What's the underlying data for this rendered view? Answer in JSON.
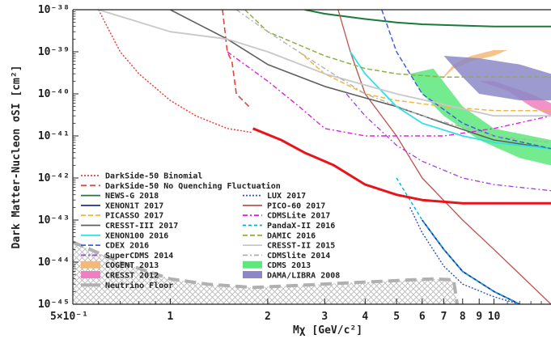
{
  "chart_data": {
    "type": "line",
    "title": "",
    "xlabel": "Mχ [GeV/c²]",
    "ylabel": "Dark Matter-Nucleon σSI [cm²]",
    "x_scale": "log",
    "y_scale": "log",
    "xlim": [
      0.5,
      15
    ],
    "ylim": [
      1e-45,
      1e-38
    ],
    "x_ticks": [
      {
        "value": 0.5,
        "label": "5×10⁻¹"
      },
      {
        "value": 1,
        "label": "1"
      },
      {
        "value": 2,
        "label": "2"
      },
      {
        "value": 3,
        "label": "3"
      },
      {
        "value": 4,
        "label": "4"
      },
      {
        "value": 5,
        "label": "5"
      },
      {
        "value": 6,
        "label": "6"
      },
      {
        "value": 7,
        "label": "7"
      },
      {
        "value": 8,
        "label": "8"
      },
      {
        "value": 9,
        "label": "9"
      },
      {
        "value": 10,
        "label": "10"
      }
    ],
    "y_ticks": [
      {
        "value": 1e-45,
        "label": "10⁻⁴⁵"
      },
      {
        "value": 1e-44,
        "label": "10⁻⁴⁴"
      },
      {
        "value": 1e-43,
        "label": "10⁻⁴³"
      },
      {
        "value": 1e-42,
        "label": "10⁻⁴²"
      },
      {
        "value": 1e-41,
        "label": "10⁻⁴¹"
      },
      {
        "value": 1e-40,
        "label": "10⁻⁴⁰"
      },
      {
        "value": 1e-39,
        "label": "10⁻³⁹"
      },
      {
        "value": 1e-38,
        "label": "10⁻³⁸"
      }
    ],
    "legend_position": "bottom-left",
    "series": [
      {
        "name": "DarkSide-50 Binomial",
        "color": "#e8413c",
        "dash": "2,2",
        "width": 1.5,
        "x": [
          0.6,
          0.7,
          0.8,
          1.0,
          1.2,
          1.5,
          1.8
        ],
        "y": [
          1e-38,
          1e-39,
          3e-40,
          7e-41,
          3e-41,
          1.5e-41,
          1.2e-41
        ]
      },
      {
        "name": "DarkSide-50 No Quenching Fluctuation",
        "color": "#e8413c",
        "dash": "7,4",
        "width": 1.6,
        "x": [
          1.45,
          1.5,
          1.52,
          1.55,
          1.6,
          1.75
        ],
        "y": [
          1e-38,
          1e-39,
          8e-40,
          6e-40,
          1e-40,
          5e-41
        ]
      },
      {
        "name": "NEWS-G 2018",
        "color": "#1a7a3a",
        "dash": "",
        "width": 2,
        "x": [
          2.6,
          3,
          4,
          5,
          6,
          8,
          10,
          15
        ],
        "y": [
          1e-38,
          8e-39,
          6e-39,
          5e-39,
          4.5e-39,
          4.2e-39,
          4e-39,
          4e-39
        ]
      },
      {
        "name": "LUX 2017",
        "color": "#2b4fbf",
        "dash": "2,2",
        "width": 1.4,
        "x": [
          5.5,
          6,
          7,
          8,
          10,
          12
        ],
        "y": [
          2e-43,
          5e-44,
          8e-45,
          3e-45,
          1.5e-45,
          1e-45
        ]
      },
      {
        "name": "XENON1T 2017",
        "color": "#1f2f9f",
        "dash": "",
        "width": 1.8,
        "x": [
          6,
          7,
          8,
          10,
          12
        ],
        "y": [
          1e-43,
          2e-44,
          6e-45,
          2e-45,
          1e-45
        ]
      },
      {
        "name": "PICO-60 2017",
        "color": "#c0504d",
        "dash": "",
        "width": 1.3,
        "x": [
          3.3,
          3.6,
          4,
          5,
          6,
          8,
          10,
          15
        ],
        "y": [
          1e-38,
          1e-39,
          1e-40,
          1e-41,
          1e-42,
          1e-43,
          2e-44,
          1e-45
        ]
      },
      {
        "name": "PICASSO 2017",
        "color": "#f0b840",
        "dash": "6,3",
        "width": 1.5,
        "x": [
          2.5,
          3,
          4,
          5,
          7,
          10,
          15
        ],
        "y": [
          1e-39,
          3e-40,
          1e-40,
          7e-41,
          5e-41,
          4e-41,
          4e-41
        ]
      },
      {
        "name": "CDMSLite 2017",
        "color": "#e020e0",
        "dash": "6,3,2,3",
        "width": 1.4,
        "x": [
          1.5,
          2,
          2.5,
          3,
          4,
          5,
          7,
          10,
          15
        ],
        "y": [
          1e-39,
          2e-40,
          5e-41,
          1.5e-41,
          1e-41,
          1e-41,
          1e-41,
          1.5e-41,
          3e-41
        ]
      },
      {
        "name": "CRESST-III 2017",
        "color": "#606060",
        "dash": "",
        "width": 1.6,
        "x": [
          1,
          1.5,
          2,
          3,
          4,
          5,
          7,
          10,
          15
        ],
        "y": [
          1e-38,
          2e-39,
          5e-40,
          1.5e-40,
          8e-41,
          5e-41,
          2e-41,
          8e-42,
          5e-42
        ]
      },
      {
        "name": "PandaX-II 2016",
        "color": "#00b0e0",
        "dash": "4,3",
        "width": 1.4,
        "x": [
          5,
          6,
          7,
          8,
          10,
          12
        ],
        "y": [
          1e-42,
          1e-43,
          2e-44,
          6e-45,
          2e-45,
          1e-45
        ]
      },
      {
        "name": "XENON100 2016",
        "color": "#30e0e8",
        "dash": "",
        "width": 1.8,
        "x": [
          3.6,
          4,
          5,
          6,
          8,
          10,
          15
        ],
        "y": [
          1e-39,
          3e-40,
          5e-41,
          2e-41,
          1e-41,
          7e-42,
          5e-42
        ]
      },
      {
        "name": "DAMIC 2016",
        "color": "#90b040",
        "dash": "6,3",
        "width": 1.5,
        "x": [
          1.7,
          2,
          3,
          4,
          5,
          7,
          10,
          15
        ],
        "y": [
          1e-38,
          3e-39,
          8e-40,
          4e-40,
          3e-40,
          2.5e-40,
          2.5e-40,
          2.5e-40
        ]
      },
      {
        "name": "CDEX 2016",
        "color": "#4060e0",
        "dash": "6,3",
        "width": 1.5,
        "x": [
          4.5,
          5,
          6,
          8,
          10,
          15
        ],
        "y": [
          1e-38,
          1e-39,
          1e-40,
          2e-41,
          1e-41,
          5e-42
        ]
      },
      {
        "name": "CRESST-II 2015",
        "color": "#c8c8c8",
        "dash": "",
        "width": 1.8,
        "x": [
          0.6,
          1,
          1.5,
          2,
          3,
          5,
          10,
          15
        ],
        "y": [
          1e-38,
          3e-39,
          2e-39,
          1e-39,
          3e-40,
          1e-40,
          3e-41,
          3e-41
        ]
      },
      {
        "name": "SuperCDMS 2014",
        "color": "#a040e0",
        "dash": "6,3,2,3",
        "width": 1.3,
        "x": [
          3.5,
          4,
          5,
          6,
          8,
          10,
          15
        ],
        "y": [
          1e-40,
          3e-41,
          6e-42,
          2.5e-42,
          1e-42,
          7e-43,
          5e-43
        ]
      },
      {
        "name": "CDMSlite 2014",
        "color": "#b0b0b0",
        "dash": "6,3,2,3",
        "width": 1.3,
        "x": [
          1.6,
          2,
          3,
          4,
          6,
          10,
          15
        ],
        "y": [
          1e-38,
          3e-39,
          4e-40,
          1e-40,
          3e-41,
          1e-41,
          7e-42
        ]
      },
      {
        "name": "DarkSide-50",
        "color": "#e8141c",
        "dash": "",
        "width": 3,
        "x": [
          1.8,
          2.2,
          2.6,
          3.2,
          4,
          5,
          6,
          8,
          10,
          15
        ],
        "y": [
          1.5e-41,
          8e-42,
          4e-42,
          2e-42,
          7e-43,
          4e-43,
          3e-43,
          2.5e-43,
          2.5e-43,
          2.5e-43
        ]
      },
      {
        "name": "Neutrino Floor",
        "color": "#b0b0b0",
        "dash": "14,7",
        "width": 4,
        "x": [
          0.5,
          0.7,
          1,
          1.3,
          1.8,
          2.5,
          3.5,
          4.5,
          5.5,
          6.5,
          7.5,
          7.7
        ],
        "y": [
          3e-44,
          1e-44,
          4e-45,
          3e-45,
          2.5e-45,
          2.8e-45,
          3.2e-45,
          3.5e-45,
          3.8e-45,
          4e-45,
          3.8e-45,
          1e-45
        ]
      }
    ],
    "regions": [
      {
        "name": "COGENT 2013",
        "color": "#f4b878",
        "x": [
          6.8,
          7.5,
          8.5,
          10,
          11,
          10,
          8.5,
          7.5
        ],
        "y": [
          2e-40,
          4e-40,
          6e-40,
          8e-40,
          1.1e-39,
          1.1e-39,
          8e-40,
          5e-40
        ]
      },
      {
        "name": "CRESST 2012",
        "color": "#ef7fc0",
        "x": [
          9,
          11,
          13,
          15,
          15,
          13,
          10
        ],
        "y": [
          2e-40,
          1.2e-40,
          5e-41,
          3e-41,
          6e-41,
          1e-40,
          2e-40
        ]
      },
      {
        "name": "CDMS 2013",
        "color": "#5ce87a",
        "x": [
          5.5,
          6.5,
          8,
          10,
          15,
          15,
          12,
          9,
          7,
          6,
          5.5
        ],
        "y": [
          3e-40,
          4e-40,
          5e-41,
          1.5e-41,
          8e-42,
          2e-42,
          3e-42,
          8e-42,
          3e-41,
          1e-40,
          3e-40
        ]
      },
      {
        "name": "DAMA/LIBRA 2008",
        "color": "#8c88c8",
        "x": [
          7,
          9,
          12,
          15,
          15,
          12,
          9,
          8
        ],
        "y": [
          8e-40,
          7e-40,
          5e-40,
          3e-40,
          7e-41,
          7e-41,
          1e-40,
          2.5e-40
        ]
      }
    ],
    "legend": [
      {
        "label": "DarkSide-50 Binomial",
        "color": "#e8413c",
        "dash": "2,2",
        "kind": "line"
      },
      {
        "label": "DarkSide-50 No Quenching Fluctuation",
        "color": "#e8413c",
        "dash": "7,4",
        "kind": "line"
      },
      {
        "label": "NEWS-G 2018",
        "color": "#1a7a3a",
        "dash": "",
        "kind": "line"
      },
      {
        "label": "XENON1T 2017",
        "color": "#1f2f9f",
        "dash": "",
        "kind": "line"
      },
      {
        "label": "PICASSO 2017",
        "color": "#f0b840",
        "dash": "6,3",
        "kind": "line"
      },
      {
        "label": "CRESST-III 2017",
        "color": "#606060",
        "dash": "",
        "kind": "line"
      },
      {
        "label": "XENON100 2016",
        "color": "#30e0e8",
        "dash": "",
        "kind": "line"
      },
      {
        "label": "CDEX 2016",
        "color": "#4060e0",
        "dash": "6,3",
        "kind": "line"
      },
      {
        "label": "SuperCDMS 2014",
        "color": "#a040e0",
        "dash": "6,3,2,3",
        "kind": "line"
      },
      {
        "label": "COGENT 2013",
        "color": "#f4b878",
        "dash": "",
        "kind": "box"
      },
      {
        "label": "CRESST 2012",
        "color": "#ef7fc0",
        "dash": "",
        "kind": "box"
      },
      {
        "label": "Neutrino Floor",
        "color": "#b0b0b0",
        "dash": "",
        "kind": "thick"
      },
      {
        "label": "LUX 2017",
        "color": "#2b4fbf",
        "dash": "2,2",
        "kind": "line"
      },
      {
        "label": "PICO-60 2017",
        "color": "#c0504d",
        "dash": "",
        "kind": "line"
      },
      {
        "label": "CDMSLite 2017",
        "color": "#e020e0",
        "dash": "6,3,2,3",
        "kind": "line"
      },
      {
        "label": "PandaX-II 2016",
        "color": "#00b0e0",
        "dash": "4,3",
        "kind": "line"
      },
      {
        "label": "DAMIC 2016",
        "color": "#90b040",
        "dash": "6,3",
        "kind": "line"
      },
      {
        "label": "CRESST-II 2015",
        "color": "#c8c8c8",
        "dash": "",
        "kind": "line"
      },
      {
        "label": "CDMSlite 2014",
        "color": "#b0b0b0",
        "dash": "6,3,2,3",
        "kind": "line"
      },
      {
        "label": "CDMS 2013",
        "color": "#5ce87a",
        "dash": "",
        "kind": "box"
      },
      {
        "label": "DAMA/LIBRA 2008",
        "color": "#8c88c8",
        "dash": "",
        "kind": "box"
      }
    ]
  }
}
